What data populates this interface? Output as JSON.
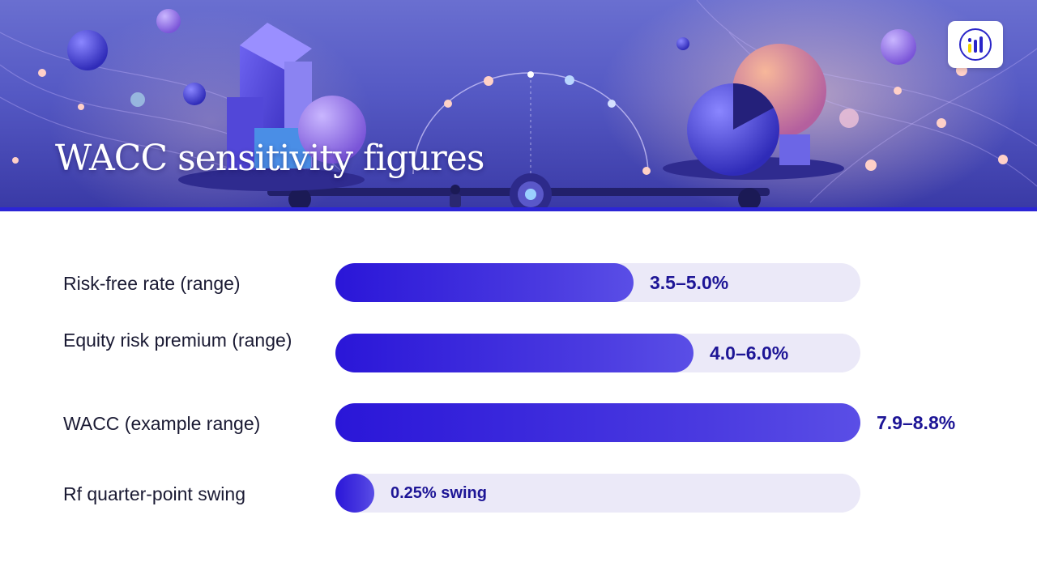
{
  "slide": {
    "title": "WACC sensitivity figures"
  },
  "logo": {
    "icon": "bar-chart-logo-icon"
  },
  "colors": {
    "accent": "#2c25d6",
    "bar_fill": "#3a22dc",
    "track": "#ebe9f8",
    "value_text": "#1d1596"
  },
  "chart_data": {
    "type": "bar",
    "orientation": "horizontal",
    "categories": [
      "Risk-free rate (range)",
      "Equity risk premium (range)",
      "WACC (example range)",
      "Rf quarter-point swing"
    ],
    "labels": [
      "3.5–5.0%",
      "4.0–6.0%",
      "7.9–8.8%",
      "0.25% swing"
    ],
    "ranges": [
      [
        3.5,
        5.0
      ],
      [
        4.0,
        6.0
      ],
      [
        7.9,
        8.8
      ],
      [
        0.25,
        0.25
      ]
    ],
    "values": [
      5.0,
      6.0,
      8.8,
      0.25
    ],
    "xlim": [
      0,
      8.8
    ],
    "grid": false
  }
}
